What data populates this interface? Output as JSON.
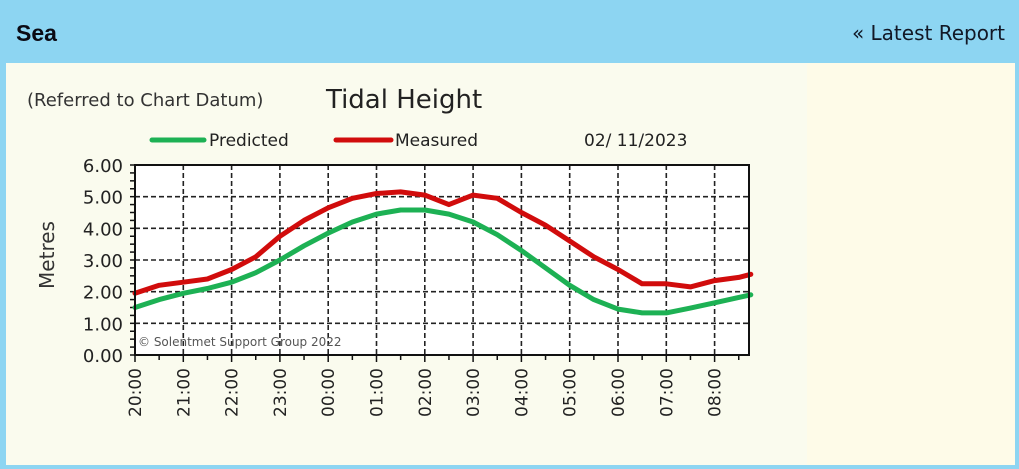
{
  "header": {
    "title": "Sea",
    "link_label": "« Latest Report"
  },
  "colors": {
    "header_bg": "#8dd5f2",
    "panel_bg": "#fefbe8",
    "predicted": "#1db154",
    "measured": "#d10c0c"
  },
  "chart_data": {
    "type": "line",
    "title": "Tidal Height",
    "subtitle": "(Referred to Chart Datum)",
    "date": "02/ 11/2023",
    "xlabel": "",
    "ylabel": "Metres",
    "ylim": [
      0,
      6
    ],
    "yticks": [
      "0.00",
      "1.00",
      "2.00",
      "3.00",
      "4.00",
      "5.00",
      "6.00"
    ],
    "x_tick_labels": [
      "20:00",
      "21:00",
      "22:00",
      "23:00",
      "00:00",
      "01:00",
      "02:00",
      "03:00",
      "04:00",
      "05:00",
      "06:00",
      "07:00",
      "08:00"
    ],
    "grid": true,
    "legend_position": "top",
    "annotation": "© Solentmet Support Group 2022",
    "x_hours_from_20": [
      0,
      0.5,
      1,
      1.5,
      2,
      2.5,
      3,
      3.5,
      4,
      4.5,
      5,
      5.5,
      6,
      6.5,
      7,
      7.5,
      8,
      8.5,
      9,
      9.5,
      10,
      10.5,
      11,
      11.5,
      12,
      12.5,
      12.75
    ],
    "series": [
      {
        "name": "Predicted",
        "color": "#1db154",
        "values": [
          1.5,
          1.75,
          1.95,
          2.1,
          2.3,
          2.6,
          3.0,
          3.45,
          3.85,
          4.2,
          4.45,
          4.58,
          4.58,
          4.45,
          4.2,
          3.8,
          3.3,
          2.75,
          2.2,
          1.75,
          1.45,
          1.33,
          1.33,
          1.48,
          1.65,
          1.82,
          1.9
        ]
      },
      {
        "name": "Measured",
        "color": "#d10c0c",
        "values": [
          1.95,
          2.2,
          2.3,
          2.4,
          2.7,
          3.1,
          3.75,
          4.25,
          4.65,
          4.95,
          5.1,
          5.15,
          5.05,
          4.75,
          5.05,
          4.95,
          4.5,
          4.1,
          3.6,
          3.1,
          2.7,
          2.25,
          2.25,
          2.15,
          2.35,
          2.45,
          2.55
        ]
      }
    ]
  }
}
